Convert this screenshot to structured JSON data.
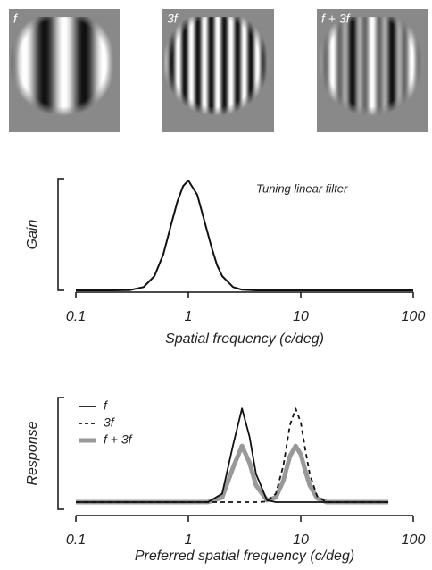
{
  "panels": [
    "f",
    "3f",
    "f + 3f"
  ],
  "chart_data": [
    {
      "type": "line",
      "ylabel": "Gain",
      "xlabel": "Spatial frequency (c/deg)",
      "annotation": "Tuning linear filter",
      "xscale": "log",
      "xlim": [
        0.1,
        100
      ],
      "xticks": [
        0.1,
        1,
        10,
        100
      ],
      "ylim": [
        0,
        1
      ],
      "x": [
        0.1,
        0.2,
        0.3,
        0.4,
        0.5,
        0.6,
        0.7,
        0.8,
        0.9,
        1,
        1.2,
        1.4,
        1.6,
        1.8,
        2,
        2.5,
        3,
        4,
        5,
        10,
        100
      ],
      "series": [
        {
          "color": "#111111",
          "linewidth": 2,
          "dash": false,
          "values": [
            0,
            0,
            0.002,
            0.03,
            0.13,
            0.33,
            0.59,
            0.81,
            0.95,
            1,
            0.87,
            0.62,
            0.4,
            0.23,
            0.13,
            0.03,
            0.006,
            0,
            0,
            0,
            0
          ]
        }
      ]
    },
    {
      "type": "line",
      "ylabel": "Response",
      "xlabel": "Preferred spatial frequency (c/deg)",
      "xscale": "log",
      "xlim": [
        0.1,
        100
      ],
      "xticks": [
        0.1,
        1,
        10,
        100
      ],
      "ylim": [
        0,
        1.05
      ],
      "legend": "top-left",
      "x": [
        0.1,
        1,
        1.5,
        2,
        2.5,
        3,
        3.5,
        4,
        5,
        6,
        7,
        8,
        9,
        10,
        11,
        12,
        14,
        17,
        20,
        30,
        60
      ],
      "series": [
        {
          "name": "f",
          "color": "#111111",
          "linewidth": 1.8,
          "dash": false,
          "values": [
            0,
            0,
            0.001,
            0.09,
            0.61,
            1,
            0.7,
            0.3,
            0.02,
            0,
            0,
            0,
            0,
            0,
            0,
            0,
            0,
            0,
            0,
            0,
            0
          ]
        },
        {
          "name": "3f",
          "color": "#111111",
          "linewidth": 1.8,
          "dash": true,
          "values": [
            0,
            0,
            0,
            0,
            0,
            0,
            0,
            0,
            0.006,
            0.09,
            0.39,
            0.82,
            1,
            0.85,
            0.55,
            0.3,
            0.06,
            0,
            0,
            0,
            0
          ]
        },
        {
          "name": "f + 3f",
          "color": "#999999",
          "linewidth": 5,
          "dash": false,
          "values": [
            0,
            0,
            0.001,
            0.05,
            0.37,
            0.6,
            0.42,
            0.18,
            0.02,
            0.05,
            0.23,
            0.49,
            0.6,
            0.51,
            0.33,
            0.18,
            0.04,
            0,
            0,
            0,
            0
          ]
        }
      ]
    }
  ]
}
